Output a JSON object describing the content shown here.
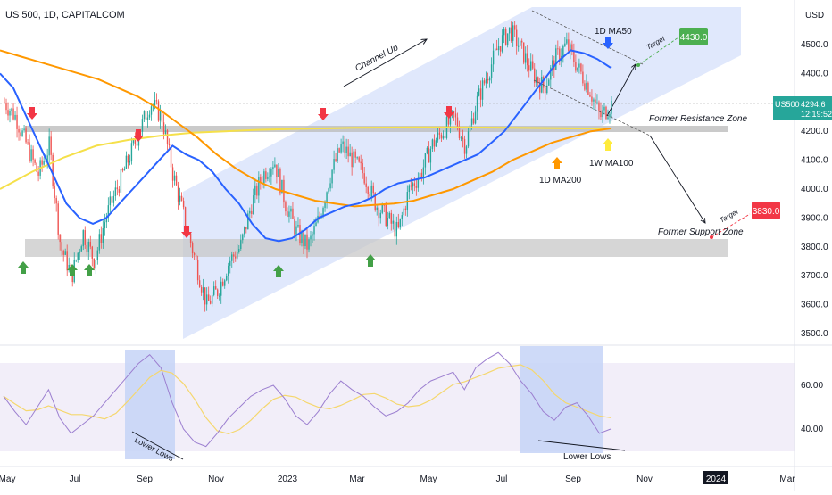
{
  "header": {
    "title": "US 500, 1D, CAPITALCOM"
  },
  "price_axis": {
    "currency": "USD",
    "ticks": [
      "4500.0",
      "4400.0",
      "4300.0",
      "4200.0",
      "4100.0",
      "4000.0",
      "3900.0",
      "3800.0",
      "3700.0",
      "3600.0",
      "3500.0"
    ],
    "current_symbol": "US500",
    "current_price": "4294.6",
    "countdown": "12:19:52"
  },
  "rsi_axis": {
    "ticks": [
      "60.00",
      "40.00"
    ]
  },
  "time_axis": {
    "ticks": [
      "May",
      "Jul",
      "Sep",
      "Nov",
      "2023",
      "Mar",
      "May",
      "Jul",
      "Sep",
      "Nov",
      "2024",
      "Mar"
    ],
    "highlight": "2024"
  },
  "annotations": {
    "channel": "Channel Up",
    "ma50": "1D MA50",
    "ma200": "1D MA200",
    "ma100w": "1W MA100",
    "resistance": "Former Resistance Zone",
    "support": "Former Support Zone",
    "target1_word": "Target",
    "target1_value": "4430.0",
    "target2_word": "Target",
    "target2_value": "3830.0",
    "lower_lows_1": "Lower Lows",
    "lower_lows_2": "Lower Lows"
  },
  "colors": {
    "up_candle": "#26a69a",
    "down_candle": "#ef5350",
    "ma50": "#2962ff",
    "ma200": "#ff9800",
    "ma100w": "#ffeb3b",
    "channel": "#d6e0fb",
    "zone": "#c8c8c8",
    "rsi": "#9c7fd0",
    "rsi_ma": "#f5d76e",
    "target_up": "#4caf50",
    "target_down": "#f23645"
  },
  "chart_data": {
    "type": "candlestick",
    "title": "US 500, 1D, CAPITALCOM",
    "ylim": [
      3480,
      4600
    ],
    "series": [
      {
        "name": "Price",
        "values": [
          4300,
          4250,
          4150,
          4050,
          4150,
          3800,
          3700,
          3850,
          3750,
          3900,
          4000,
          4100,
          4200,
          4300,
          4250,
          4050,
          3900,
          3750,
          3600,
          3650,
          3750,
          3800,
          3950,
          4050,
          4100,
          3950,
          3850,
          3800,
          3900,
          4050,
          4150,
          4100,
          4050,
          3950,
          3900,
          3850,
          4000,
          4050,
          4150,
          4200,
          4250,
          4150,
          4300,
          4400,
          4500,
          4550,
          4480,
          4400,
          4350,
          4450,
          4500,
          4420,
          4350,
          4250,
          4294.6
        ]
      },
      {
        "name": "1D MA50",
        "values": [
          4400,
          4350,
          4250,
          4150,
          4050,
          3950,
          3900,
          3880,
          3900,
          3950,
          4000,
          4050,
          4100,
          4150,
          4120,
          4100,
          4060,
          4000,
          3950,
          3880,
          3830,
          3820,
          3830,
          3860,
          3900,
          3920,
          3940,
          3950,
          3970,
          4000,
          4020,
          4030,
          4040,
          4060,
          4080,
          4100,
          4120,
          4160,
          4200,
          4260,
          4320,
          4380,
          4440,
          4480,
          4470,
          4450,
          4420
        ]
      },
      {
        "name": "1D MA200",
        "values": [
          4480,
          4460,
          4440,
          4420,
          4400,
          4380,
          4350,
          4320,
          4280,
          4230,
          4180,
          4120,
          4070,
          4030,
          4000,
          3980,
          3960,
          3950,
          3940,
          3945,
          3950,
          3960,
          3980,
          4000,
          4030,
          4060,
          4100,
          4130,
          4160,
          4180,
          4200,
          4210
        ]
      },
      {
        "name": "1W MA100",
        "values": [
          4000,
          4060,
          4110,
          4150,
          4170,
          4185,
          4195,
          4200,
          4205,
          4208,
          4210,
          4212,
          4213,
          4214,
          4214,
          4213,
          4212,
          4211,
          4210,
          4210
        ]
      }
    ],
    "zones": [
      {
        "name": "Former Resistance Zone",
        "low": 4195,
        "high": 4215
      },
      {
        "name": "Former Support Zone",
        "low": 3770,
        "high": 3830
      }
    ],
    "targets": [
      4430.0,
      3830.0
    ],
    "rsi": {
      "ticks": [
        60,
        40
      ],
      "values": [
        55,
        48,
        42,
        50,
        58,
        45,
        38,
        42,
        46,
        52,
        58,
        64,
        70,
        74,
        68,
        52,
        40,
        34,
        32,
        38,
        45,
        50,
        55,
        58,
        60,
        54,
        46,
        42,
        48,
        56,
        62,
        58,
        55,
        50,
        46,
        48,
        52,
        58,
        62,
        64,
        66,
        58,
        68,
        72,
        75,
        70,
        62,
        56,
        48,
        44,
        50,
        52,
        46,
        38,
        40
      ]
    }
  }
}
